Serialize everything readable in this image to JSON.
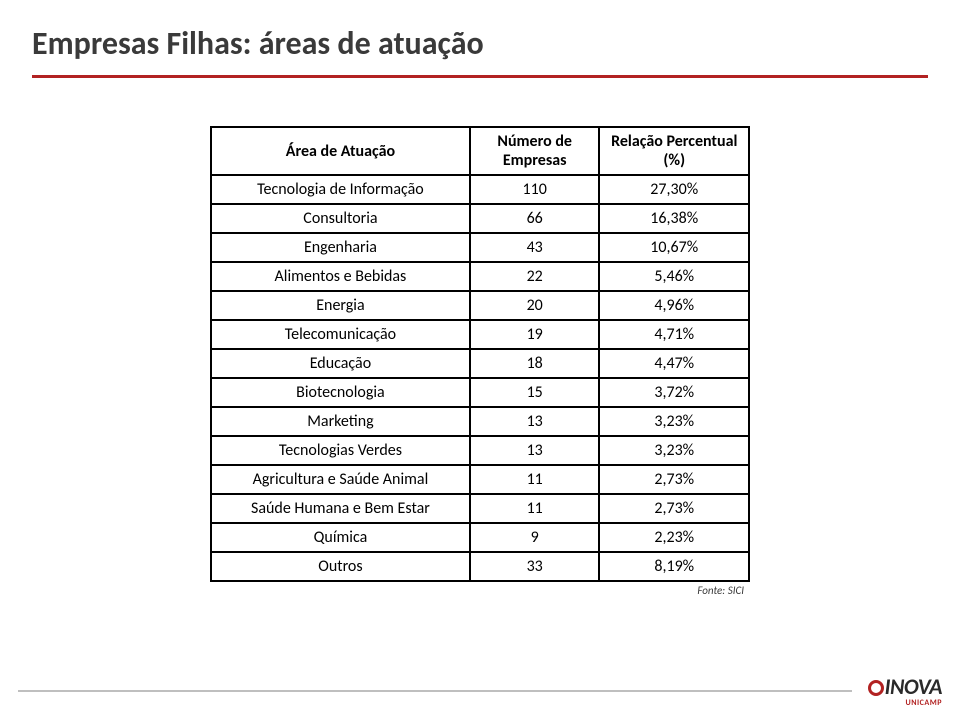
{
  "page": {
    "title": "Empresas Filhas: áreas de atuação",
    "source_label": "Fonte: SICI"
  },
  "logo": {
    "main": "INOVA",
    "sub": "UNICAMP"
  },
  "table": {
    "columns": {
      "area": "Área de Atuação",
      "count": "Número de Empresas",
      "pct": "Relação Percentual (%)"
    },
    "col_widths": {
      "area": 260,
      "count": 130,
      "pct": 150
    },
    "header_fontsize": 16,
    "cell_fontsize": 16,
    "border_color": "#000000",
    "rows": [
      {
        "area": "Tecnologia de Informação",
        "count": 110,
        "pct": "27,30%"
      },
      {
        "area": "Consultoria",
        "count": 66,
        "pct": "16,38%"
      },
      {
        "area": "Engenharia",
        "count": 43,
        "pct": "10,67%"
      },
      {
        "area": "Alimentos e Bebidas",
        "count": 22,
        "pct": "5,46%"
      },
      {
        "area": "Energia",
        "count": 20,
        "pct": "4,96%"
      },
      {
        "area": "Telecomunicação",
        "count": 19,
        "pct": "4,71%"
      },
      {
        "area": "Educação",
        "count": 18,
        "pct": "4,47%"
      },
      {
        "area": "Biotecnologia",
        "count": 15,
        "pct": "3,72%"
      },
      {
        "area": "Marketing",
        "count": 13,
        "pct": "3,23%"
      },
      {
        "area": "Tecnologias Verdes",
        "count": 13,
        "pct": "3,23%"
      },
      {
        "area": "Agricultura e Saúde Animal",
        "count": 11,
        "pct": "2,73%"
      },
      {
        "area": "Saúde Humana e Bem Estar",
        "count": 11,
        "pct": "2,73%"
      },
      {
        "area": "Química",
        "count": 9,
        "pct": "2,23%"
      },
      {
        "area": "Outros",
        "count": 33,
        "pct": "8,19%"
      }
    ]
  },
  "colors": {
    "title_text": "#3a3a3a",
    "rule_red": "#b22222",
    "rule_grey": "#bfbfbf",
    "table_border": "#000000",
    "background": "#ffffff"
  }
}
